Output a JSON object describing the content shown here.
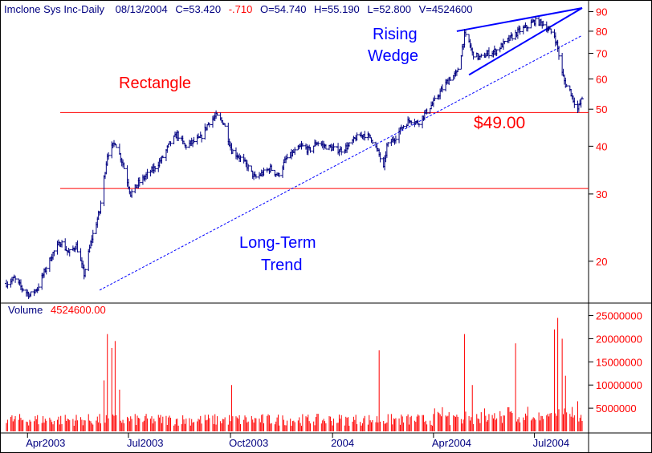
{
  "header": {
    "symbol": "Imclone Sys Inc-Daily",
    "date": "08/13/2004",
    "close": "C=53.420",
    "change": "-.710",
    "open": "O=54.740",
    "high": "H=55.190",
    "low": "L=52.800",
    "volume": "V=4524600"
  },
  "colors": {
    "header_text": "#000080",
    "change": "#ff0000",
    "bars": "#000080",
    "volume_bars": "#ff0000",
    "horizontal_lines": "#ff0000",
    "trendlines": "#0000ff",
    "axis": "#000000",
    "price_labels": "#ff0000",
    "annotation_red": "#ff0000",
    "annotation_blue": "#0000ff"
  },
  "volume_label": {
    "prefix": "Volume",
    "value": "4524600.00"
  },
  "annotations": {
    "rectangle": "Rectangle",
    "rising_wedge_1": "Rising",
    "rising_wedge_2": "Wedge",
    "support_price": "$49.00",
    "long_term_1": "Long-Term",
    "long_term_2": "Trend"
  },
  "chart_data": {
    "type": "ohlc",
    "title": "Imclone Sys Inc-Daily",
    "scale": "log",
    "ylim": [
      16,
      92
    ],
    "price_ticks": [
      90,
      80,
      70,
      60,
      50,
      40,
      30,
      20
    ],
    "volume_ticks": [
      "25000000",
      "20000000",
      "15000000",
      "10000000",
      "5000000"
    ],
    "volume_ylim": [
      0,
      27000000
    ],
    "x_labels": [
      {
        "label": "Apr2003",
        "date": "2003-04-01"
      },
      {
        "label": "Jul2003",
        "date": "2003-07-01"
      },
      {
        "label": "Oct2003",
        "date": "2003-10-01"
      },
      {
        "label": "2004",
        "date": "2004-01-01"
      },
      {
        "label": "Apr2004",
        "date": "2004-04-01"
      },
      {
        "label": "Jul2004",
        "date": "2004-07-01"
      }
    ],
    "x_range": [
      "2003-03-13",
      "2004-08-13"
    ],
    "price_path": [
      [
        "2003-03-13",
        17.5
      ],
      [
        "2003-03-20",
        18.0
      ],
      [
        "2003-03-27",
        17.0
      ],
      [
        "2003-04-03",
        16.3
      ],
      [
        "2003-04-10",
        17.0
      ],
      [
        "2003-04-17",
        19.0
      ],
      [
        "2003-04-24",
        21.0
      ],
      [
        "2003-05-01",
        22.5
      ],
      [
        "2003-05-08",
        21.0
      ],
      [
        "2003-05-15",
        22.0
      ],
      [
        "2003-05-22",
        18.5
      ],
      [
        "2003-05-29",
        23.0
      ],
      [
        "2003-06-05",
        27.0
      ],
      [
        "2003-06-09",
        33.0
      ],
      [
        "2003-06-12",
        38.0
      ],
      [
        "2003-06-19",
        41.0
      ],
      [
        "2003-06-26",
        36.0
      ],
      [
        "2003-07-03",
        30.0
      ],
      [
        "2003-07-10",
        32.0
      ],
      [
        "2003-07-17",
        33.5
      ],
      [
        "2003-07-24",
        35.0
      ],
      [
        "2003-07-31",
        37.0
      ],
      [
        "2003-08-07",
        40.5
      ],
      [
        "2003-08-14",
        43.0
      ],
      [
        "2003-08-21",
        40.0
      ],
      [
        "2003-08-28",
        41.0
      ],
      [
        "2003-09-04",
        42.0
      ],
      [
        "2003-09-11",
        46.0
      ],
      [
        "2003-09-18",
        48.0
      ],
      [
        "2003-09-25",
        46.0
      ],
      [
        "2003-10-02",
        39.0
      ],
      [
        "2003-10-09",
        37.5
      ],
      [
        "2003-10-16",
        35.5
      ],
      [
        "2003-10-23",
        33.0
      ],
      [
        "2003-10-30",
        34.0
      ],
      [
        "2003-11-06",
        35.0
      ],
      [
        "2003-11-13",
        33.5
      ],
      [
        "2003-11-20",
        37.0
      ],
      [
        "2003-11-27",
        38.5
      ],
      [
        "2003-12-04",
        40.0
      ],
      [
        "2003-12-11",
        39.0
      ],
      [
        "2003-12-18",
        41.0
      ],
      [
        "2003-12-25",
        40.0
      ],
      [
        "2004-01-01",
        39.5
      ],
      [
        "2004-01-08",
        39.0
      ],
      [
        "2004-01-15",
        40.0
      ],
      [
        "2004-01-22",
        42.0
      ],
      [
        "2004-01-29",
        43.0
      ],
      [
        "2004-02-05",
        42.0
      ],
      [
        "2004-02-12",
        38.0
      ],
      [
        "2004-02-16",
        35.0
      ],
      [
        "2004-02-19",
        40.0
      ],
      [
        "2004-02-26",
        42.0
      ],
      [
        "2004-03-04",
        45.0
      ],
      [
        "2004-03-11",
        47.0
      ],
      [
        "2004-03-18",
        46.0
      ],
      [
        "2004-03-25",
        49.0
      ],
      [
        "2004-04-01",
        52.0
      ],
      [
        "2004-04-08",
        56.0
      ],
      [
        "2004-04-15",
        60.0
      ],
      [
        "2004-04-22",
        62.0
      ],
      [
        "2004-04-26",
        70.0
      ],
      [
        "2004-04-29",
        78.0
      ],
      [
        "2004-05-03",
        75.0
      ],
      [
        "2004-05-06",
        70.0
      ],
      [
        "2004-05-13",
        68.0
      ],
      [
        "2004-05-20",
        70.0
      ],
      [
        "2004-05-27",
        71.0
      ],
      [
        "2004-06-03",
        74.0
      ],
      [
        "2004-06-10",
        77.0
      ],
      [
        "2004-06-17",
        80.0
      ],
      [
        "2004-06-24",
        82.0
      ],
      [
        "2004-07-01",
        85.0
      ],
      [
        "2004-07-08",
        84.0
      ],
      [
        "2004-07-15",
        80.0
      ],
      [
        "2004-07-19",
        78.0
      ],
      [
        "2004-07-22",
        72.0
      ],
      [
        "2004-07-26",
        62.0
      ],
      [
        "2004-07-29",
        58.0
      ],
      [
        "2004-08-02",
        56.0
      ],
      [
        "2004-08-05",
        53.0
      ],
      [
        "2004-08-09",
        50.0
      ],
      [
        "2004-08-13",
        53.42
      ]
    ],
    "volume_spikes": [
      [
        "2003-06-12",
        21000000
      ],
      [
        "2003-06-16",
        18000000
      ],
      [
        "2003-06-19",
        19500000
      ],
      [
        "2003-06-09",
        11000000
      ],
      [
        "2003-06-23",
        9000000
      ],
      [
        "2004-02-12",
        17500000
      ],
      [
        "2004-04-29",
        21000000
      ],
      [
        "2004-06-14",
        19000000
      ],
      [
        "2004-07-19",
        22000000
      ],
      [
        "2004-07-22",
        24500000
      ],
      [
        "2004-07-26",
        20000000
      ],
      [
        "2004-07-29",
        12000000
      ],
      [
        "2004-08-09",
        6500000
      ],
      [
        "2003-10-02",
        10000000
      ],
      [
        "2004-05-06",
        10000000
      ]
    ],
    "overlays": [
      {
        "kind": "horizontal",
        "price": 49.0
      },
      {
        "kind": "horizontal",
        "price": 31.0
      },
      {
        "kind": "trendline",
        "style": "dashed",
        "from": [
          "2003-06-05",
          16.8
        ],
        "to": [
          "2004-08-13",
          78.0
        ]
      },
      {
        "kind": "trendline",
        "style": "solid",
        "from": [
          "2004-04-22",
          80.0
        ],
        "to": [
          "2004-08-13",
          92.0
        ]
      },
      {
        "kind": "trendline",
        "style": "solid",
        "from": [
          "2004-05-03",
          61.5
        ],
        "to": [
          "2004-08-13",
          92.0
        ]
      }
    ]
  }
}
